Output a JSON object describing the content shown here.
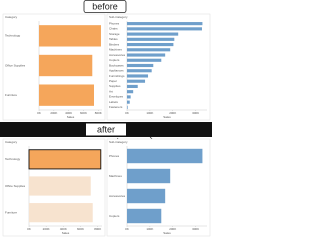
{
  "before": {
    "label": "before",
    "category_chart": {
      "type": "bar",
      "title": "Category",
      "x_title": "Sales",
      "color": "#f5a65b",
      "categories": [
        "Technology",
        "Office Supplies",
        "Furniture"
      ],
      "values": [
        836,
        719,
        742
      ],
      "xlim": [
        0,
        850
      ],
      "xticks": [
        {
          "value": 0,
          "label": "0K"
        },
        {
          "value": 200,
          "label": "200K"
        },
        {
          "value": 400,
          "label": "400K"
        },
        {
          "value": 600,
          "label": "600K"
        },
        {
          "value": 800,
          "label": "800K"
        }
      ]
    },
    "subcategory_chart": {
      "type": "bar",
      "title": "Sub-Category",
      "x_title": "Sales",
      "color": "#6f9fcb",
      "categories": [
        "Phones",
        "Chairs",
        "Storage",
        "Tables",
        "Binders",
        "Machines",
        "Accessories",
        "Copiers",
        "Bookcases",
        "Appliances",
        "Furnishings",
        "Paper",
        "Supplies",
        "Art",
        "Envelopes",
        "Labels",
        "Fasteners"
      ],
      "values": [
        330,
        328,
        224,
        207,
        203,
        189,
        167,
        150,
        115,
        108,
        92,
        79,
        47,
        27,
        16,
        12,
        3
      ],
      "xlim": [
        0,
        350
      ],
      "xticks": [
        {
          "value": 0,
          "label": "0K"
        },
        {
          "value": 100,
          "label": "100K"
        },
        {
          "value": 200,
          "label": "200K"
        },
        {
          "value": 300,
          "label": "300K"
        }
      ]
    }
  },
  "after": {
    "label": "after",
    "category_chart": {
      "type": "bar",
      "title": "Category",
      "x_title": "Sales",
      "color": "#f5a65b",
      "dim_color": "#f7e3cf",
      "selected": 0,
      "categories": [
        "Technology",
        "Office Supplies",
        "Furniture"
      ],
      "values": [
        836,
        719,
        742
      ],
      "xlim": [
        0,
        850
      ],
      "xticks": [
        {
          "value": 0,
          "label": "0K"
        },
        {
          "value": 200,
          "label": "200K"
        },
        {
          "value": 400,
          "label": "400K"
        },
        {
          "value": 600,
          "label": "600K"
        },
        {
          "value": 800,
          "label": "800K"
        }
      ]
    },
    "subcategory_chart": {
      "type": "bar",
      "title": "Sub-Category",
      "x_title": "Sales",
      "color": "#6f9fcb",
      "categories": [
        "Phones",
        "Machines",
        "Accessories",
        "Copiers"
      ],
      "values": [
        330,
        189,
        167,
        150
      ],
      "xlim": [
        0,
        350
      ],
      "xticks": [
        {
          "value": 0,
          "label": "0K"
        },
        {
          "value": 100,
          "label": "100K"
        },
        {
          "value": 200,
          "label": "200K"
        },
        {
          "value": 300,
          "label": "300K"
        }
      ]
    }
  }
}
